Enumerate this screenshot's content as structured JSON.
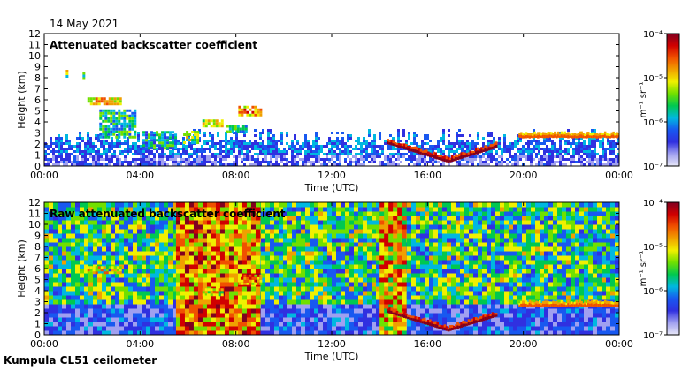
{
  "header": {
    "date": "14 May 2021"
  },
  "footer": {
    "instrument": "Kumpula CL51 ceilometer"
  },
  "colormap": [
    "#e8e8f8",
    "#a0a0f0",
    "#3030e0",
    "#1858f0",
    "#00b8e0",
    "#00c850",
    "#70e000",
    "#f0f000",
    "#f0a000",
    "#f05000",
    "#d00000",
    "#800020"
  ],
  "chart_data": [
    {
      "type": "heatmap",
      "title": "Attenuated backscatter coefficient",
      "xlabel": "Time (UTC)",
      "ylabel": "Height (km)",
      "x_ticks": [
        "00:00",
        "04:00",
        "08:00",
        "12:00",
        "16:00",
        "20:00",
        "00:00"
      ],
      "y_ticks": [
        "0",
        "1",
        "2",
        "3",
        "4",
        "5",
        "6",
        "7",
        "8",
        "9",
        "10",
        "11",
        "12"
      ],
      "ylim": [
        0,
        12
      ],
      "xlim_hours": [
        0,
        24
      ],
      "colorbar": {
        "units": "m⁻¹ sr⁻¹",
        "ticks": [
          "10⁻⁴",
          "10⁻⁵",
          "10⁻⁶",
          "10⁻⁷"
        ],
        "range_log10": [
          -7,
          -4
        ]
      },
      "features": [
        {
          "name": "boundary-layer",
          "t": [
            0,
            24
          ],
          "top_km": 2.5,
          "level": 0.3
        },
        {
          "name": "cloud",
          "t": [
            0.9,
            1.0
          ],
          "h": [
            8.0,
            8.5
          ],
          "level": 0.7
        },
        {
          "name": "cloud",
          "t": [
            1.6,
            1.7
          ],
          "h": [
            7.8,
            8.4
          ],
          "level": 0.7
        },
        {
          "name": "cloud",
          "t": [
            1.8,
            3.2
          ],
          "h": [
            5.5,
            6.0
          ],
          "level": 0.85
        },
        {
          "name": "cloud",
          "t": [
            2.3,
            3.8
          ],
          "h": [
            2.5,
            5.0
          ],
          "level": 0.6
        },
        {
          "name": "cloud",
          "t": [
            4.1,
            5.5
          ],
          "h": [
            1.5,
            3.0
          ],
          "level": 0.55
        },
        {
          "name": "cloud",
          "t": [
            5.8,
            6.4
          ],
          "h": [
            2.0,
            3.0
          ],
          "level": 0.7
        },
        {
          "name": "cloud",
          "t": [
            6.6,
            7.4
          ],
          "h": [
            3.5,
            4.1
          ],
          "level": 0.8
        },
        {
          "name": "cloud",
          "t": [
            7.6,
            8.4
          ],
          "h": [
            3.0,
            3.5
          ],
          "level": 0.6
        },
        {
          "name": "cloud",
          "t": [
            8.1,
            9.0
          ],
          "h": [
            4.5,
            5.3
          ],
          "level": 0.9
        },
        {
          "name": "cloud-base",
          "t": [
            14.3,
            18.9
          ],
          "h": [
            0.3,
            2.5
          ],
          "level": 0.9
        },
        {
          "name": "cloud-base",
          "t": [
            19.8,
            24.0
          ],
          "h": [
            2.5,
            3.0
          ],
          "level": 0.75
        }
      ]
    },
    {
      "type": "heatmap",
      "title": "Raw attenuated backscatter coefficient",
      "xlabel": "Time (UTC)",
      "ylabel": "Height (km)",
      "x_ticks": [
        "00:00",
        "04:00",
        "08:00",
        "12:00",
        "16:00",
        "20:00",
        "00:00"
      ],
      "y_ticks": [
        "0",
        "1",
        "2",
        "3",
        "4",
        "5",
        "6",
        "7",
        "8",
        "9",
        "10",
        "11",
        "12"
      ],
      "ylim": [
        0,
        12
      ],
      "xlim_hours": [
        0,
        24
      ],
      "colorbar": {
        "units": "m⁻¹ sr⁻¹",
        "ticks": [
          "10⁻⁴",
          "10⁻⁵",
          "10⁻⁶",
          "10⁻⁷"
        ],
        "range_log10": [
          -7,
          -4
        ]
      },
      "features": [
        {
          "name": "noise-field",
          "t": [
            0,
            24
          ],
          "h": [
            0,
            12
          ],
          "level": 0.45
        },
        {
          "name": "noise-bright",
          "t": [
            5.5,
            9.0
          ],
          "h": [
            0,
            12
          ],
          "level": 0.75
        },
        {
          "name": "noise-bright",
          "t": [
            14.0,
            15.0
          ],
          "h": [
            0,
            12
          ],
          "level": 0.7
        },
        {
          "name": "cloud",
          "t": [
            1.8,
            3.2
          ],
          "h": [
            5.5,
            6.0
          ],
          "level": 0.85
        },
        {
          "name": "cloud",
          "t": [
            6.6,
            7.4
          ],
          "h": [
            3.5,
            4.1
          ],
          "level": 0.8
        },
        {
          "name": "cloud",
          "t": [
            8.1,
            9.0
          ],
          "h": [
            4.5,
            5.3
          ],
          "level": 0.9
        },
        {
          "name": "cloud-base",
          "t": [
            14.3,
            18.9
          ],
          "h": [
            0.3,
            2.5
          ],
          "level": 0.9
        },
        {
          "name": "cloud-base",
          "t": [
            19.8,
            24.0
          ],
          "h": [
            2.5,
            3.0
          ],
          "level": 0.75
        }
      ]
    }
  ]
}
